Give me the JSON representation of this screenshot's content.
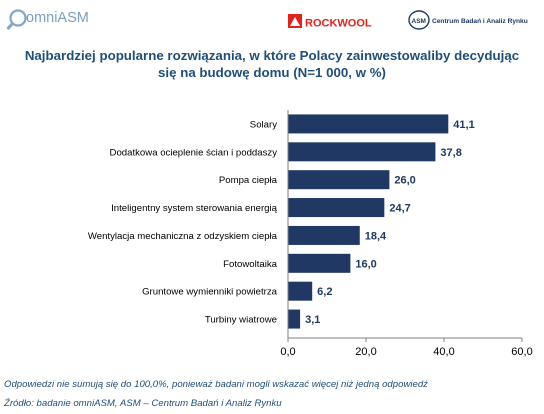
{
  "logos": {
    "omniasm": "omniASM",
    "rockwool": "ROCKWOOL",
    "asm_short": "ASM",
    "asm_full": "Centrum Badań i Analiz Rynku"
  },
  "chart_data": {
    "type": "bar",
    "orientation": "horizontal",
    "title_line1": "Najbardziej popularne rozwiązania, w które Polacy zainwestowaliby decydując",
    "title_line2": "się na budowę domu (N=1 000, w %)",
    "categories": [
      "Solary",
      "Dodatkowa ocieplenie ścian i poddaszy",
      "Pompa ciepła",
      "Inteligentny system sterowania energią",
      "Wentylacja mechaniczna z odzyskiem ciepła",
      "Fotowoltaika",
      "Gruntowe wymienniki powietrza",
      "Turbiny wiatrowe"
    ],
    "values": [
      41.1,
      37.8,
      26.0,
      24.7,
      18.4,
      16.0,
      6.2,
      3.1
    ],
    "value_labels": [
      "41,1",
      "37,8",
      "26,0",
      "24,7",
      "18,4",
      "16,0",
      "6,2",
      "3,1"
    ],
    "xlim": [
      0,
      60
    ],
    "xticks": [
      0,
      20,
      40,
      60
    ],
    "xtick_labels": [
      "0,0",
      "20,0",
      "40,0",
      "60,0"
    ],
    "bar_color": "#1f3864",
    "grid": false,
    "legend": "none"
  },
  "footnotes": {
    "note": "Odpowiedzi nie sumują się do 100,0%, ponieważ badani mogli wskazać więcej niż jedną odpowiedź",
    "source": "Źródło: badanie omniASM, ASM – Centrum Badań i Analiz Rynku"
  }
}
